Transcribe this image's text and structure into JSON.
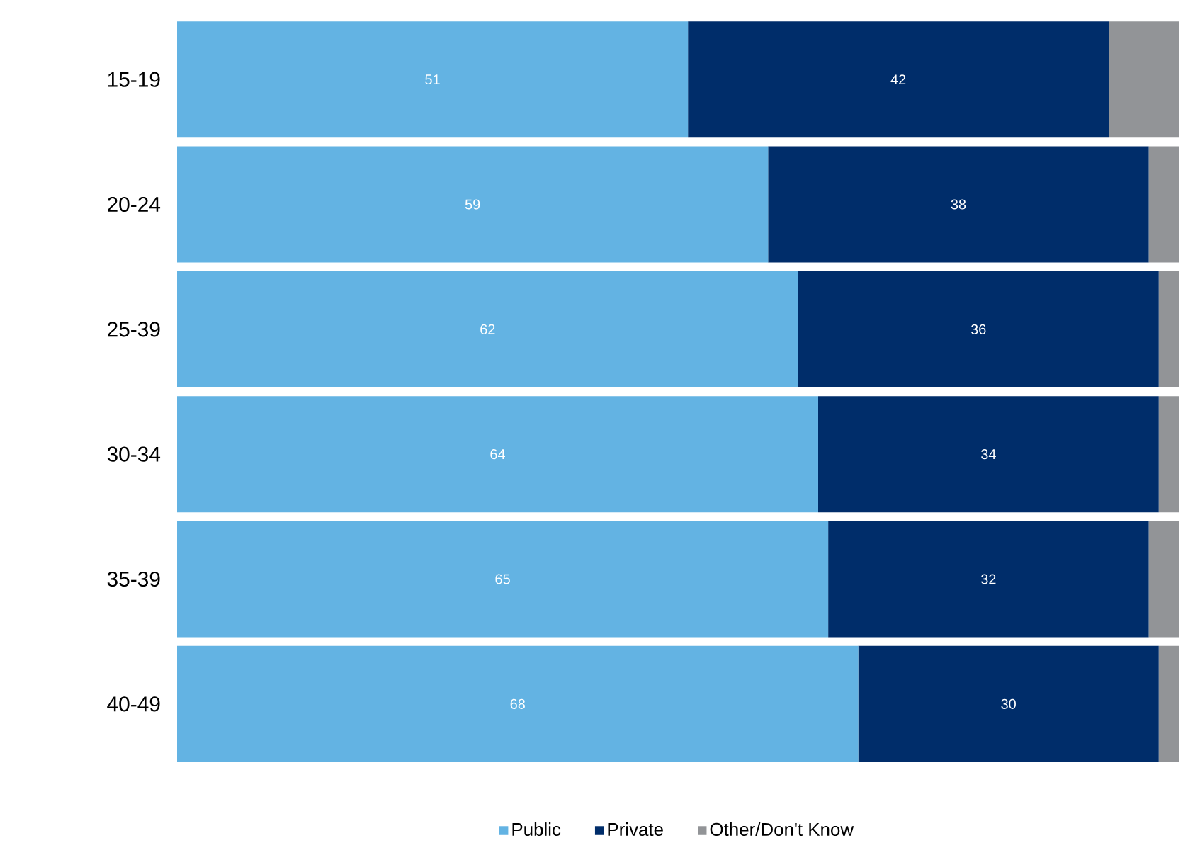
{
  "chart_data": {
    "type": "bar",
    "orientation": "horizontal",
    "stacked": true,
    "categories": [
      "15-19",
      "20-24",
      "25-39",
      "30-34",
      "35-39",
      "40-49"
    ],
    "series": [
      {
        "name": "Public",
        "color": "#63b3e3",
        "values": [
          51,
          59,
          62,
          64,
          65,
          68
        ],
        "value_labels": [
          "51",
          "59",
          "62",
          "64",
          "65",
          "68"
        ]
      },
      {
        "name": "Private",
        "color": "#002d6a",
        "values": [
          42,
          38,
          36,
          34,
          32,
          30
        ],
        "value_labels": [
          "42",
          "38",
          "36",
          "34",
          "32",
          "30"
        ]
      },
      {
        "name": "Other/Don't Know",
        "color": "#929497",
        "values": [
          7,
          3,
          2,
          2,
          3,
          2
        ]
      }
    ],
    "xlim": [
      0,
      100
    ],
    "tick_labels": "y",
    "legend": "bottom",
    "grid": false
  }
}
